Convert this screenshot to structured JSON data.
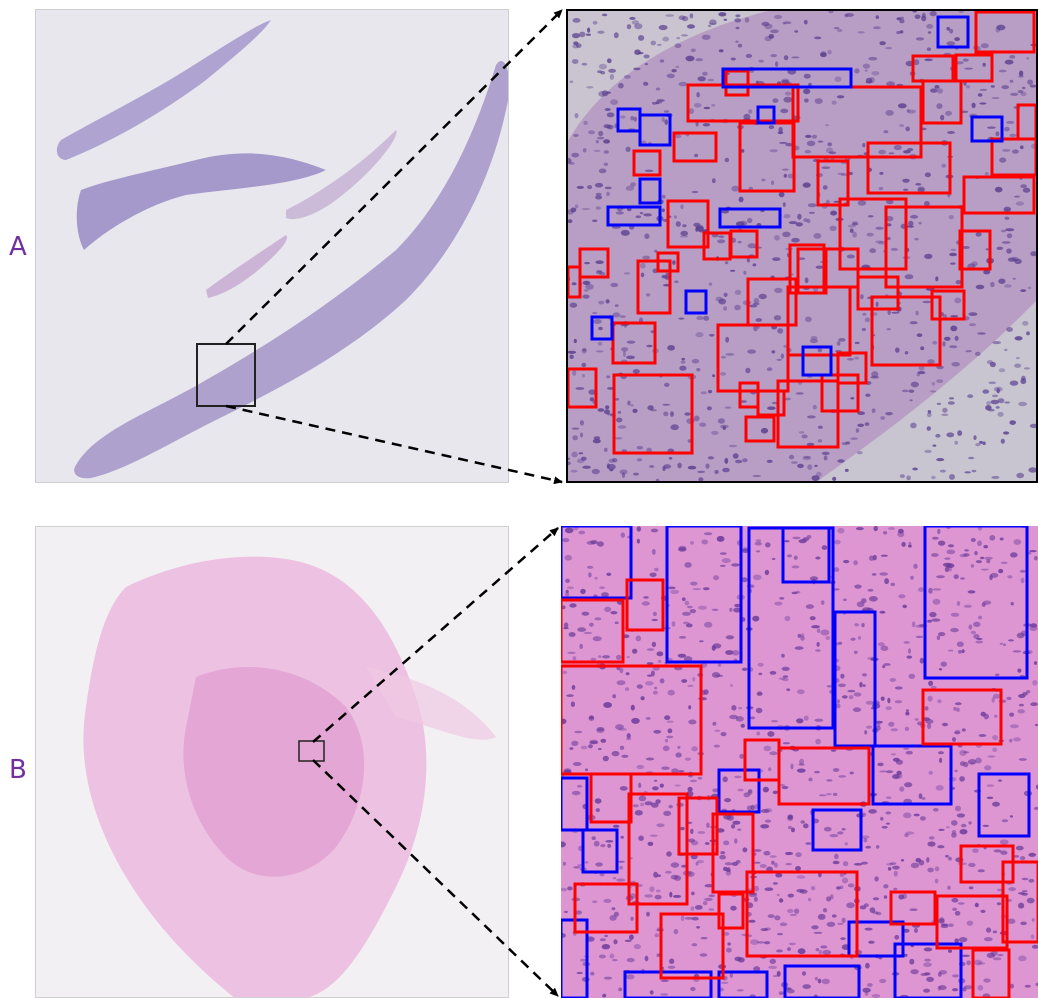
{
  "panels": [
    {
      "label": "A"
    },
    {
      "label": "B"
    }
  ],
  "colors": {
    "label": "#7030a0",
    "box_red": "#ff0000",
    "box_blue": "#0000ff",
    "connector": "#000000",
    "tissue_a": "#8f7ab8",
    "tissue_b": "#e6a9d6",
    "stroma_a": "#c7b3cf",
    "stroma_b": "#dc93cf",
    "nuclei": "#5a3f8f"
  }
}
